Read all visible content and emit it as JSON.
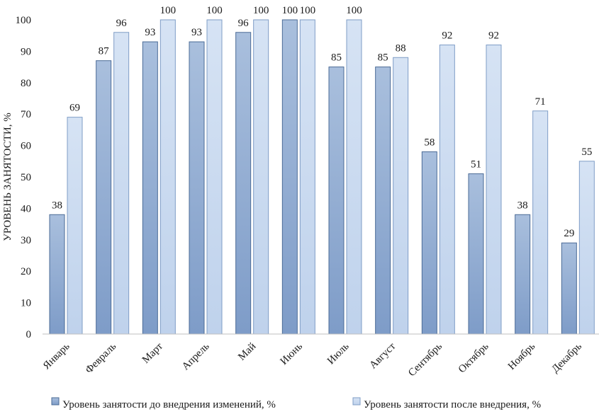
{
  "chart_data": {
    "type": "bar",
    "title": "",
    "xlabel": "",
    "ylabel": "УРОВЕНЬ ЗАНЯТОСТИ, %",
    "ylim": [
      0,
      100
    ],
    "yticks": [
      0,
      10,
      20,
      30,
      40,
      50,
      60,
      70,
      80,
      90,
      100
    ],
    "grid": false,
    "legend_position": "bottom",
    "categories": [
      "Январь",
      "Февраль",
      "Март",
      "Апрель",
      "Май",
      "Июнь",
      "Июль",
      "Август",
      "Сентябрь",
      "Октябрь",
      "Ноябрь",
      "Декабрь"
    ],
    "series": [
      {
        "name": "Уровень занятости до внедрения изменений, %",
        "values": [
          38,
          87,
          93,
          93,
          96,
          100,
          85,
          85,
          58,
          51,
          38,
          29
        ],
        "color": "#8eaad0",
        "stroke": "#4b6b96"
      },
      {
        "name": "Уровень занятости после внедрения, %",
        "values": [
          69,
          96,
          100,
          100,
          100,
          100,
          100,
          88,
          92,
          92,
          71,
          55
        ],
        "color": "#c8d9ef",
        "stroke": "#7f9dc6"
      }
    ]
  }
}
